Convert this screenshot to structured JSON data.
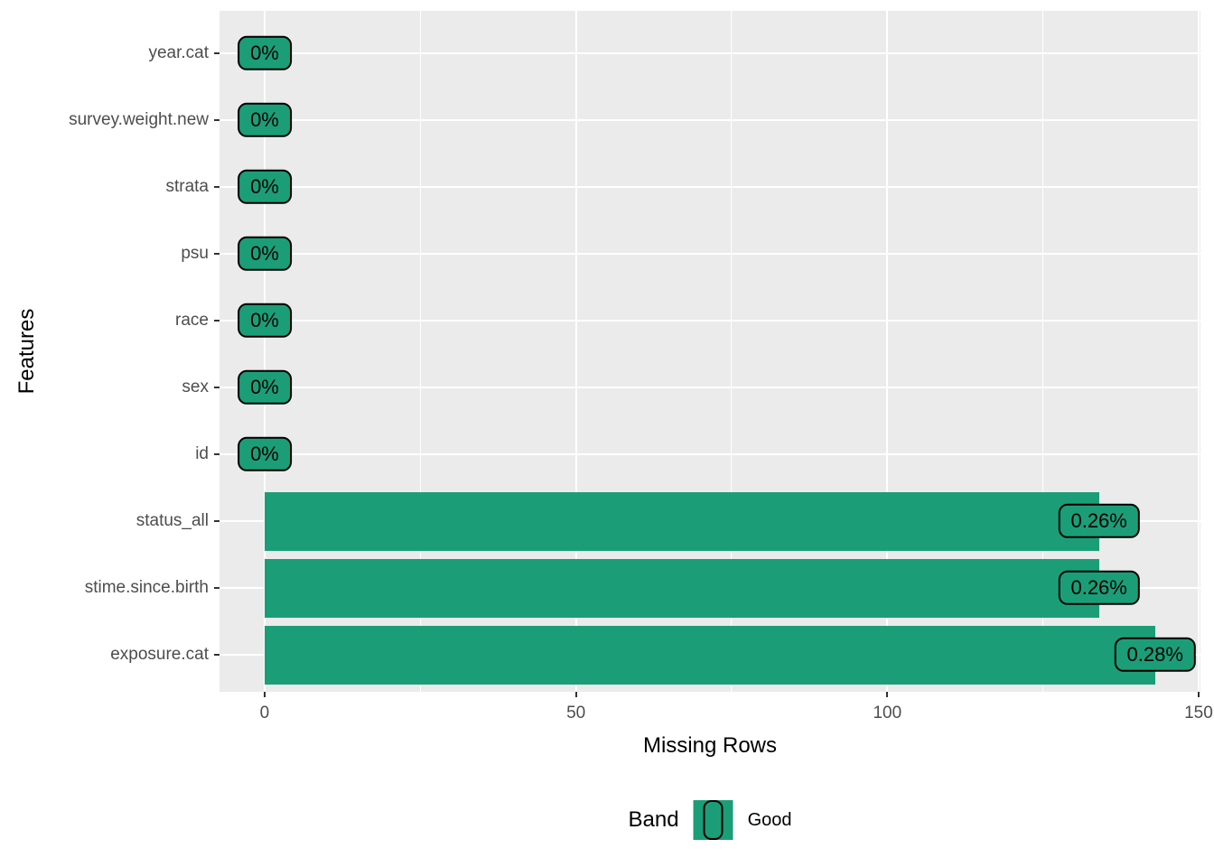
{
  "chart_data": {
    "type": "bar",
    "orientation": "horizontal",
    "xlabel": "Missing Rows",
    "ylabel": "Features",
    "categories": [
      "year.cat",
      "survey.weight.new",
      "strata",
      "psu",
      "race",
      "sex",
      "id",
      "status_all",
      "stime.since.birth",
      "exposure.cat"
    ],
    "values": [
      0,
      0,
      0,
      0,
      0,
      0,
      0,
      134,
      134,
      143
    ],
    "bar_labels": [
      "0%",
      "0%",
      "0%",
      "0%",
      "0%",
      "0%",
      "0%",
      "0.26%",
      "0.26%",
      "0.28%"
    ],
    "x_ticks": [
      0,
      50,
      100,
      150
    ],
    "x_minor_ticks": [
      25,
      75,
      125
    ],
    "xlim": [
      -7.25,
      150.5
    ],
    "grid": true,
    "legend": {
      "title": "Band",
      "position": "bottom",
      "entries": [
        {
          "label": "Good",
          "color": "#1b9e77"
        }
      ]
    },
    "colors": {
      "bar_fill": "#1b9e77",
      "label_fill": "#1b9e77",
      "label_border": "#000000",
      "panel_bg": "#ebebeb",
      "grid": "#ffffff",
      "axis_text": "#4d4d4d",
      "axis_title": "#000000"
    }
  }
}
